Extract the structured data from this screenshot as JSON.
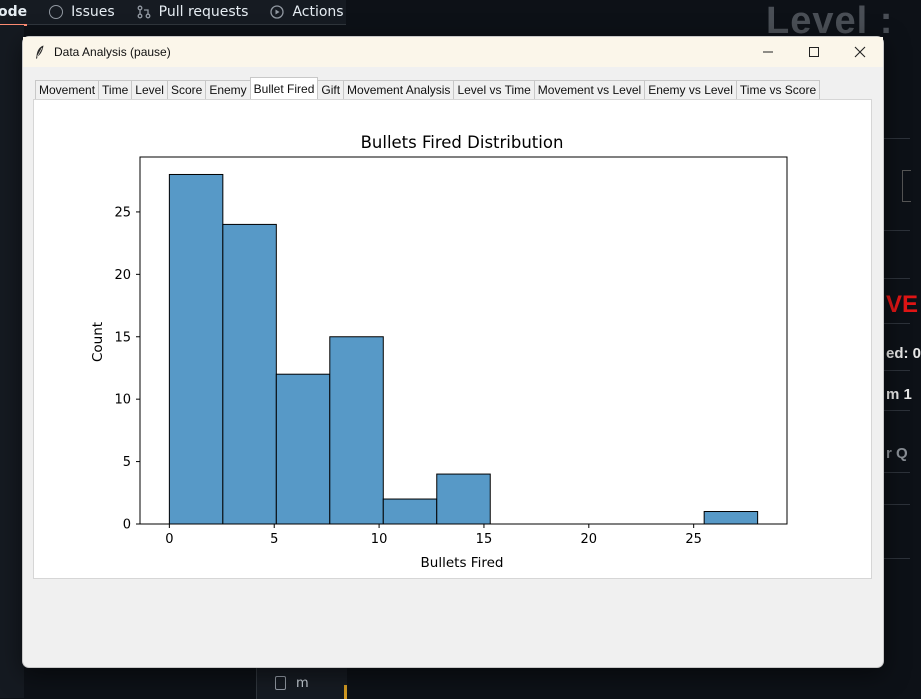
{
  "background": {
    "top_tabs": [
      {
        "label": "ode",
        "icon": "code-icon"
      },
      {
        "label": "Issues",
        "icon": "issue-icon"
      },
      {
        "label": "Pull requests",
        "icon": "pull-request-icon"
      },
      {
        "label": "Actions",
        "icon": "play-icon"
      }
    ],
    "level_text": "Level :",
    "right_fragments": {
      "red": "VE",
      "line1": "ed: 0",
      "line2": "m 1",
      "line3": "r Q"
    },
    "file_label": "m"
  },
  "window": {
    "title": "Data Analysis (pause)",
    "min_glyph": "—",
    "max_glyph": "☐",
    "close_glyph": "✕"
  },
  "tabs": [
    "Movement",
    "Time",
    "Level",
    "Score",
    "Enemy",
    "Bullet Fired",
    "Gift",
    "Movement Analysis",
    "Level vs Time",
    "Movement vs Level",
    "Enemy vs Level",
    "Time vs Score"
  ],
  "active_tab": "Bullet Fired",
  "chart_data": {
    "type": "bar",
    "title": "Bullets Fired Distribution",
    "xlabel": "Bullets Fired",
    "ylabel": "Count",
    "bin_edges": [
      0,
      2.55,
      5.1,
      7.65,
      10.2,
      12.75,
      15.3,
      17.85,
      20.4,
      22.95,
      25.5,
      28.05
    ],
    "values": [
      28,
      24,
      12,
      15,
      2,
      4,
      0,
      0,
      0,
      0,
      1
    ],
    "xlim": [
      -1.4,
      29.45
    ],
    "ylim": [
      0,
      29.4
    ],
    "xticks": [
      0,
      5,
      10,
      15,
      20,
      25
    ],
    "yticks": [
      0,
      5,
      10,
      15,
      20,
      25
    ],
    "bar_color": "#5799c7",
    "edge_color": "#000000",
    "grid": false
  }
}
